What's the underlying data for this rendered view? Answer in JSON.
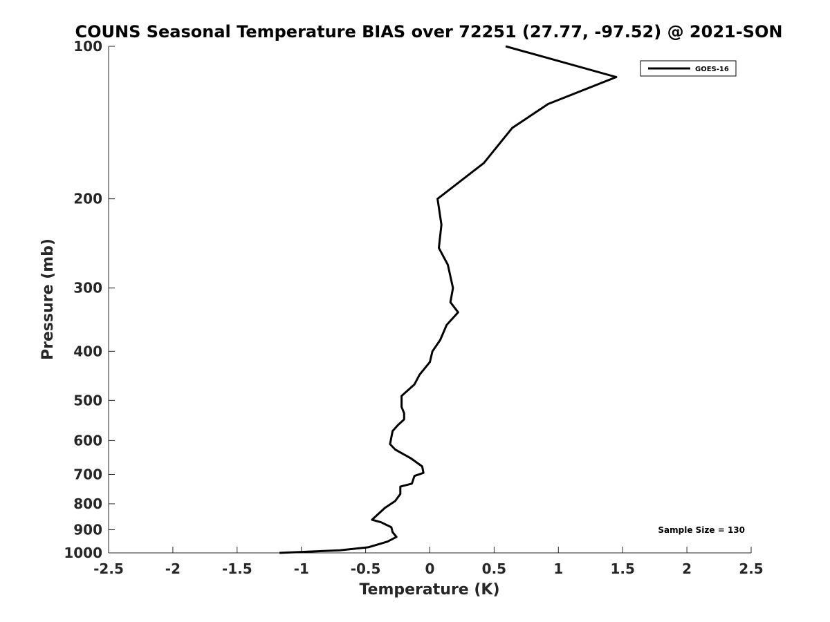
{
  "chart_data": {
    "type": "line",
    "title": "COUNS Seasonal Temperature BIAS over 72251 (27.77, -97.52) @ 2021-SON",
    "xlabel": "Temperature (K)",
    "ylabel": "Pressure (mb)",
    "xlim": [
      -2.5,
      2.5
    ],
    "ylim": [
      100,
      1000
    ],
    "y_scale": "log",
    "y_reversed": true,
    "x_ticks": [
      "-2.5",
      "-2",
      "-1.5",
      "-1",
      "-0.5",
      "0",
      "0.5",
      "1",
      "1.5",
      "2",
      "2.5"
    ],
    "x_tick_values": [
      -2.5,
      -2,
      -1.5,
      -1,
      -0.5,
      0,
      0.5,
      1,
      1.5,
      2,
      2.5
    ],
    "y_ticks": [
      "100",
      "200",
      "300",
      "400",
      "500",
      "600",
      "700",
      "800",
      "900",
      "1000"
    ],
    "y_tick_values": [
      100,
      200,
      300,
      400,
      500,
      600,
      700,
      800,
      900,
      1000
    ],
    "grid": false,
    "legend_position": "top-right",
    "series": [
      {
        "name": "GOES-16",
        "color": "#000000",
        "points": [
          {
            "t": 0.59,
            "p": 100
          },
          {
            "t": 1.45,
            "p": 115
          },
          {
            "t": 0.92,
            "p": 130
          },
          {
            "t": 0.64,
            "p": 145
          },
          {
            "t": 0.42,
            "p": 170
          },
          {
            "t": 0.06,
            "p": 200
          },
          {
            "t": 0.09,
            "p": 225
          },
          {
            "t": 0.07,
            "p": 250
          },
          {
            "t": 0.14,
            "p": 270
          },
          {
            "t": 0.18,
            "p": 300
          },
          {
            "t": 0.16,
            "p": 320
          },
          {
            "t": 0.22,
            "p": 335
          },
          {
            "t": 0.13,
            "p": 355
          },
          {
            "t": 0.08,
            "p": 380
          },
          {
            "t": 0.02,
            "p": 400
          },
          {
            "t": 0.0,
            "p": 420
          },
          {
            "t": -0.08,
            "p": 445
          },
          {
            "t": -0.12,
            "p": 465
          },
          {
            "t": -0.22,
            "p": 490
          },
          {
            "t": -0.22,
            "p": 515
          },
          {
            "t": -0.2,
            "p": 530
          },
          {
            "t": -0.2,
            "p": 545
          },
          {
            "t": -0.25,
            "p": 560
          },
          {
            "t": -0.29,
            "p": 575
          },
          {
            "t": -0.31,
            "p": 610
          },
          {
            "t": -0.27,
            "p": 625
          },
          {
            "t": -0.15,
            "p": 650
          },
          {
            "t": -0.06,
            "p": 675
          },
          {
            "t": -0.05,
            "p": 695
          },
          {
            "t": -0.12,
            "p": 705
          },
          {
            "t": -0.14,
            "p": 730
          },
          {
            "t": -0.23,
            "p": 740
          },
          {
            "t": -0.23,
            "p": 765
          },
          {
            "t": -0.27,
            "p": 790
          },
          {
            "t": -0.35,
            "p": 815
          },
          {
            "t": -0.45,
            "p": 860
          },
          {
            "t": -0.38,
            "p": 870
          },
          {
            "t": -0.3,
            "p": 890
          },
          {
            "t": -0.29,
            "p": 910
          },
          {
            "t": -0.26,
            "p": 930
          },
          {
            "t": -0.33,
            "p": 950
          },
          {
            "t": -0.48,
            "p": 975
          },
          {
            "t": -0.7,
            "p": 988
          },
          {
            "t": -1.17,
            "p": 1000
          }
        ]
      }
    ],
    "annotations": [
      {
        "text": "Sample Size = 130",
        "position": "bottom-right"
      }
    ]
  }
}
